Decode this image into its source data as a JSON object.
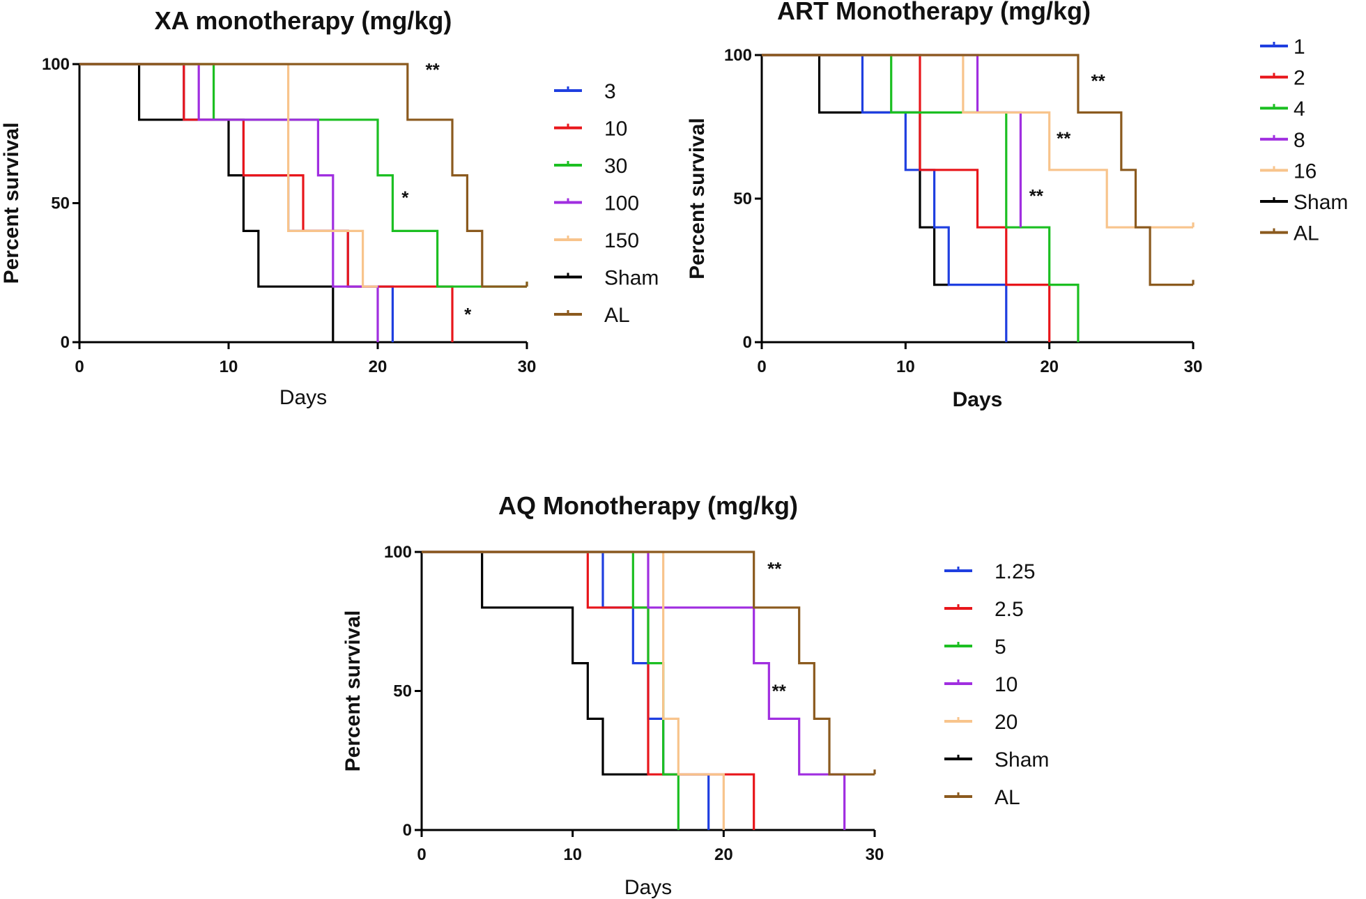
{
  "chart_data": [
    {
      "type": "line",
      "subtype": "kaplan-meier-step",
      "title": "XA monotherapy (mg/kg)",
      "xlabel": "Days",
      "ylabel": "Percent survival",
      "xlim": [
        0,
        30
      ],
      "ylim": [
        0,
        100
      ],
      "xticks": [
        0,
        10,
        20,
        30
      ],
      "yticks": [
        0,
        50,
        100
      ],
      "legend_position": "right",
      "series": [
        {
          "name": "3",
          "color": "#1f3fe0",
          "x": [
            0,
            7,
            11,
            14,
            18,
            21
          ],
          "y": [
            100,
            80,
            60,
            40,
            20,
            0
          ]
        },
        {
          "name": "10",
          "color": "#e8161b",
          "x": [
            0,
            7,
            11,
            14,
            15,
            18,
            25
          ],
          "y": [
            100,
            80,
            60,
            60,
            40,
            20,
            0
          ]
        },
        {
          "name": "30",
          "color": "#1cbf22",
          "x": [
            0,
            9,
            20,
            21,
            24,
            30
          ],
          "y": [
            100,
            80,
            60,
            40,
            20,
            20
          ]
        },
        {
          "name": "100",
          "color": "#a02ee0",
          "x": [
            0,
            8,
            16,
            17,
            20
          ],
          "y": [
            100,
            80,
            60,
            20,
            0
          ]
        },
        {
          "name": "150",
          "color": "#f8c48c",
          "x": [
            0,
            14,
            19,
            20
          ],
          "y": [
            100,
            40,
            20,
            20
          ]
        },
        {
          "name": "Sham",
          "color": "#000000",
          "x": [
            0,
            4,
            10,
            11,
            12,
            17
          ],
          "y": [
            100,
            80,
            60,
            40,
            20,
            0
          ]
        },
        {
          "name": "AL",
          "color": "#8b5a1e",
          "x": [
            0,
            22,
            25,
            26,
            27,
            30
          ],
          "y": [
            100,
            80,
            60,
            40,
            20,
            20
          ]
        }
      ],
      "annotations": [
        {
          "text": "**",
          "x": 23.2,
          "y": 98
        },
        {
          "text": "*",
          "x": 21.6,
          "y": 52
        },
        {
          "text": "*",
          "x": 25.8,
          "y": 10
        }
      ]
    },
    {
      "type": "line",
      "subtype": "kaplan-meier-step",
      "title": "ART  Monotherapy (mg/kg)",
      "xlabel": "Days",
      "ylabel": "Percent survival",
      "xlim": [
        0,
        30
      ],
      "ylim": [
        0,
        100
      ],
      "xticks": [
        0,
        10,
        20,
        30
      ],
      "yticks": [
        0,
        50,
        100
      ],
      "legend_position": "right",
      "series": [
        {
          "name": "1",
          "color": "#1f3fe0",
          "x": [
            0,
            7,
            10,
            12,
            13,
            17
          ],
          "y": [
            100,
            80,
            60,
            40,
            20,
            0
          ]
        },
        {
          "name": "2",
          "color": "#e8161b",
          "x": [
            0,
            11,
            15,
            17,
            20
          ],
          "y": [
            100,
            60,
            40,
            20,
            0
          ]
        },
        {
          "name": "4",
          "color": "#1cbf22",
          "x": [
            0,
            9,
            17,
            20,
            22
          ],
          "y": [
            100,
            80,
            40,
            20,
            0
          ]
        },
        {
          "name": "8",
          "color": "#a02ee0",
          "x": [
            0,
            15,
            18
          ],
          "y": [
            100,
            80,
            40
          ]
        },
        {
          "name": "16",
          "color": "#f8c48c",
          "x": [
            0,
            14,
            20,
            24,
            30
          ],
          "y": [
            100,
            80,
            60,
            40,
            40
          ]
        },
        {
          "name": "Sham",
          "color": "#000000",
          "x": [
            0,
            4,
            11,
            12,
            13
          ],
          "y": [
            100,
            80,
            40,
            20,
            20
          ]
        },
        {
          "name": "AL",
          "color": "#8b5a1e",
          "x": [
            0,
            22,
            25,
            26,
            27,
            30
          ],
          "y": [
            100,
            80,
            60,
            40,
            20,
            20
          ]
        }
      ],
      "annotations": [
        {
          "text": "**",
          "x": 22.9,
          "y": 91
        },
        {
          "text": "**",
          "x": 20.5,
          "y": 71
        },
        {
          "text": "**",
          "x": 18.6,
          "y": 51
        }
      ]
    },
    {
      "type": "line",
      "subtype": "kaplan-meier-step",
      "title": "AQ Monotherapy (mg/kg)",
      "xlabel": "Days",
      "ylabel": "Percent survival",
      "xlim": [
        0,
        30
      ],
      "ylim": [
        0,
        100
      ],
      "xticks": [
        0,
        10,
        20,
        30
      ],
      "yticks": [
        0,
        50,
        100
      ],
      "legend_position": "right",
      "series": [
        {
          "name": "1.25",
          "color": "#1f3fe0",
          "x": [
            0,
            12,
            14,
            15,
            16,
            19
          ],
          "y": [
            100,
            80,
            60,
            40,
            20,
            0
          ]
        },
        {
          "name": "2.5",
          "color": "#e8161b",
          "x": [
            0,
            11,
            15,
            22
          ],
          "y": [
            100,
            80,
            20,
            0
          ]
        },
        {
          "name": "5",
          "color": "#1cbf22",
          "x": [
            0,
            14,
            15,
            16,
            17
          ],
          "y": [
            100,
            80,
            60,
            20,
            0
          ]
        },
        {
          "name": "10",
          "color": "#a02ee0",
          "x": [
            0,
            15,
            22,
            23,
            25,
            28
          ],
          "y": [
            100,
            80,
            60,
            40,
            20,
            0
          ]
        },
        {
          "name": "20",
          "color": "#f8c48c",
          "x": [
            0,
            16,
            17,
            20
          ],
          "y": [
            100,
            40,
            20,
            0
          ]
        },
        {
          "name": "Sham",
          "color": "#000000",
          "x": [
            0,
            4,
            10,
            11,
            12,
            15
          ],
          "y": [
            100,
            80,
            60,
            40,
            20,
            20
          ]
        },
        {
          "name": "AL",
          "color": "#8b5a1e",
          "x": [
            0,
            22,
            25,
            26,
            27,
            30
          ],
          "y": [
            100,
            80,
            60,
            40,
            20,
            20
          ]
        }
      ],
      "annotations": [
        {
          "text": "**",
          "x": 22.9,
          "y": 94
        },
        {
          "text": "**",
          "x": 23.2,
          "y": 50
        }
      ]
    }
  ]
}
